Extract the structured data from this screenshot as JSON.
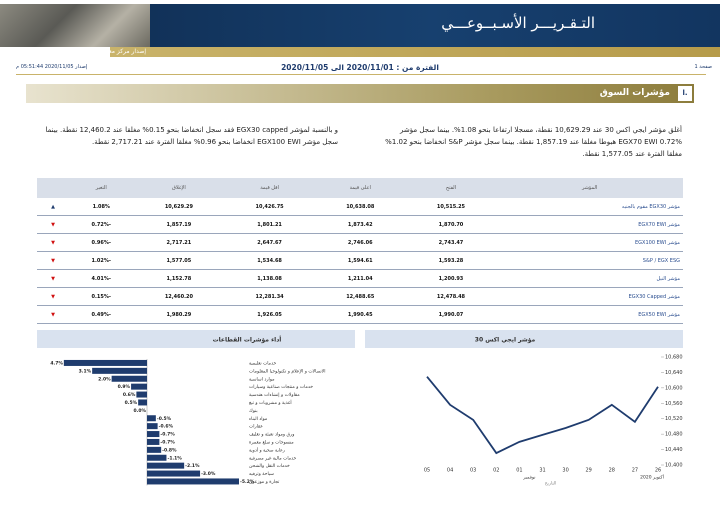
{
  "header": {
    "title": "التـقـريـــر الأسـبــوعـــي",
    "subtitle": "إصدار مركز معلومات البورصة المصرية",
    "page": "صفحة 1",
    "period": "الفترة من : 2020/11/01 الى 2020/11/05",
    "release": "إصدار 2020/11/05 05:51:44 م"
  },
  "section": {
    "number": "ا.",
    "title": "مؤشرات السوق"
  },
  "paragraphs": [
    "أغلق مؤشر ايجي اكس 30 عند 10,629.29 نقطة، مسجلا ارتفاعا بنحو 1.08%. بينما سجل مؤشر EGX70 EWI 0.72% هبوطا مغلقا عند 1,857.19 نقطة. بينما سجل مؤشر S&P انخفاضا بنحو 1.02% مغلقا الفترة عند 1,577.05 نقطة.",
    "و بالنسبة لمؤشر EGX30 capped فقد سجل انخفاضا بنحو 0.15% مغلقا عند 12,460.2 نقطة. بينما سجل مؤشر EGX100 EWI انخفاضا بنحو 0.96% مغلقا الفترة عند 2,717.21 نقطة."
  ],
  "table": {
    "columns": [
      "المؤشر",
      "الفتح",
      "اعلى قيمة",
      "اقل قيمة",
      "الإغلاق",
      "التغير"
    ],
    "rows": [
      [
        "مؤشر EGX30 مقوم بالجنيه",
        "10,515.25",
        "10,638.08",
        "10,426.75",
        "10,629.29",
        "1.08%"
      ],
      [
        "مؤشر EGX70 EWI",
        "1,870.70",
        "1,873.42",
        "1,801.21",
        "1,857.19",
        "-0.72%"
      ],
      [
        "مؤشر EGX100 EWI",
        "2,743.47",
        "2,746.06",
        "2,647.67",
        "2,717.21",
        "-0.96%"
      ],
      [
        "S&P / EGX ESG",
        "1,593.28",
        "1,594.61",
        "1,534.68",
        "1,577.05",
        "-1.02%"
      ],
      [
        "مؤشر النيل",
        "1,200.93",
        "1,211.04",
        "1,138.08",
        "1,152.78",
        "-4.01%"
      ],
      [
        "مؤشر EGX30 Capped",
        "12,478.48",
        "12,488.65",
        "12,281.34",
        "12,460.20",
        "-0.15%"
      ],
      [
        "مؤشر EGX50 EWI",
        "1,990.07",
        "1,990.45",
        "1,926.05",
        "1,980.29",
        "-0.49%"
      ]
    ],
    "arrows": [
      "▲",
      "▼",
      "▼",
      "▼",
      "▼",
      "▼",
      "▼"
    ]
  },
  "chart_data": [
    {
      "type": "line",
      "title": "مؤشر ايجي اكس 30",
      "categories": [
        "05",
        "04",
        "03",
        "02",
        "01",
        "31",
        "30",
        "29",
        "28",
        "27",
        "26"
      ],
      "values": [
        10629,
        10556,
        10517,
        10431,
        10460,
        10478,
        10496,
        10517,
        10556,
        10512,
        10603
      ],
      "color": "#1f3c6e",
      "ylim": [
        10400,
        10680
      ],
      "yticks": [
        {
          "value": 10400,
          "label": "10,400"
        },
        {
          "value": 10440,
          "label": "10,440"
        },
        {
          "value": 10480,
          "label": "10,480"
        },
        {
          "value": 10520,
          "label": "10,520"
        },
        {
          "value": 10560,
          "label": "10,560"
        },
        {
          "value": 10600,
          "label": "10,600"
        },
        {
          "value": 10640,
          "label": "10,640"
        },
        {
          "value": 10680,
          "label": "10,680"
        }
      ],
      "month_labels": [
        "نوفمبر",
        "أكتوبر 2020"
      ],
      "xlabel": "التاريخ"
    },
    {
      "type": "bar",
      "orientation": "horizontal",
      "title": "أداء مؤشرات القطاعات",
      "categories": [
        "خدمات تعليمية",
        "الاتصالات و الإعلام و تكنولوجيا المعلومات",
        "موارد اساسية",
        "خدمات و منتجات صناعية وسيارات",
        "مقاولات و إنشاءات هندسية",
        "أغذية و مشروبات و تبغ",
        "بنوك",
        "مواد البناء",
        "عقارات",
        "ورق ومواد تعبئة و تغليف",
        "منسوجات و سلع معمرة",
        "رعاية صحية و أدوية",
        "خدمات مالية غير مصرفية",
        "خدمات النقل والشحن",
        "سياحة وترفيه",
        "تجارة و موزعون"
      ],
      "values": [
        4.7,
        3.1,
        2.0,
        0.9,
        0.6,
        0.5,
        0.0,
        -0.5,
        -0.6,
        -0.7,
        -0.7,
        -0.8,
        -1.1,
        -2.1,
        -3.0,
        -5.2
      ],
      "value_labels": [
        "4.7%",
        "3.1%",
        "2.0%",
        "0.9%",
        "0.6%",
        "0.5%",
        "0.0%",
        "-0.5%",
        "-0.6%",
        "-0.7%",
        "-0.7%",
        "-0.8%",
        "-1.1%",
        "-2.1%",
        "-3.0%",
        "-5.2%"
      ],
      "color": "#1f3c6e"
    }
  ]
}
